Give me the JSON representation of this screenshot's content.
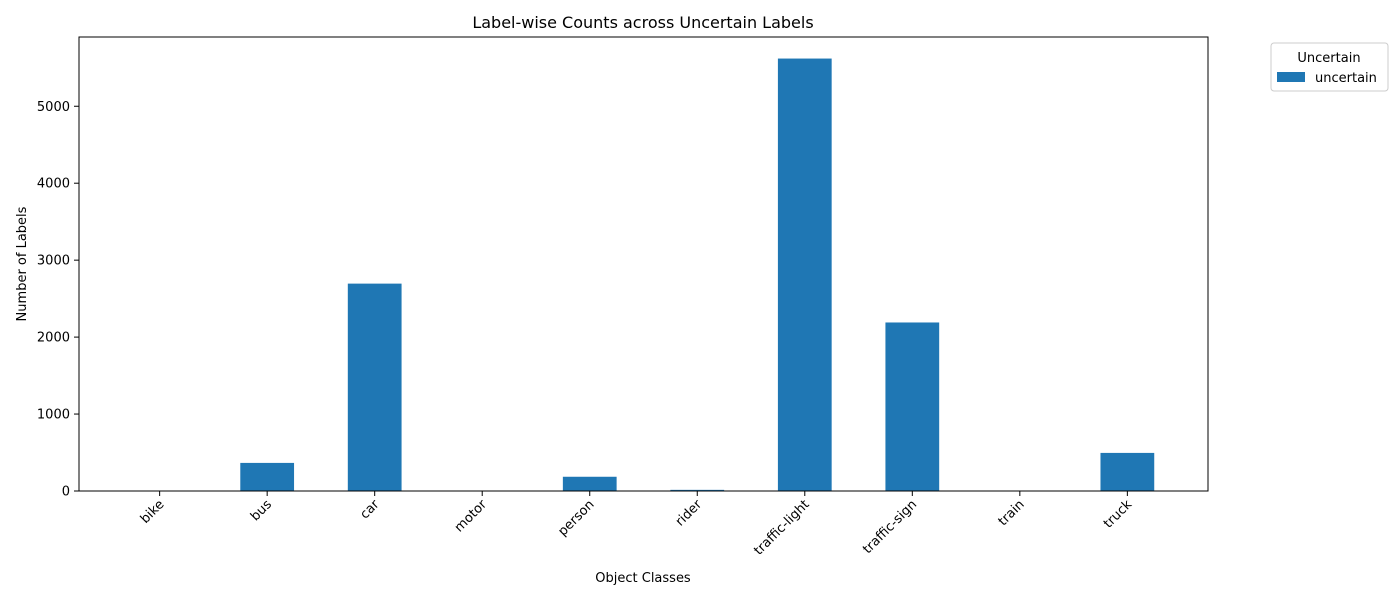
{
  "chart_data": {
    "type": "bar",
    "title": "Label-wise Counts across Uncertain Labels",
    "xlabel": "Object Classes",
    "ylabel": "Number of Labels",
    "categories": [
      "bike",
      "bus",
      "car",
      "motor",
      "person",
      "rider",
      "traffic-light",
      "traffic-sign",
      "train",
      "truck"
    ],
    "series": [
      {
        "name": "uncertain",
        "values": [
          2,
          365,
          2695,
          5,
          185,
          15,
          5620,
          2190,
          2,
          495
        ],
        "color": "#1f77b4"
      }
    ],
    "ylim": [
      0,
      5900
    ],
    "yticks": [
      0,
      1000,
      2000,
      3000,
      4000,
      5000
    ],
    "grid": false,
    "legend": {
      "title": "Uncertain",
      "placement": "outside-top-right"
    }
  }
}
